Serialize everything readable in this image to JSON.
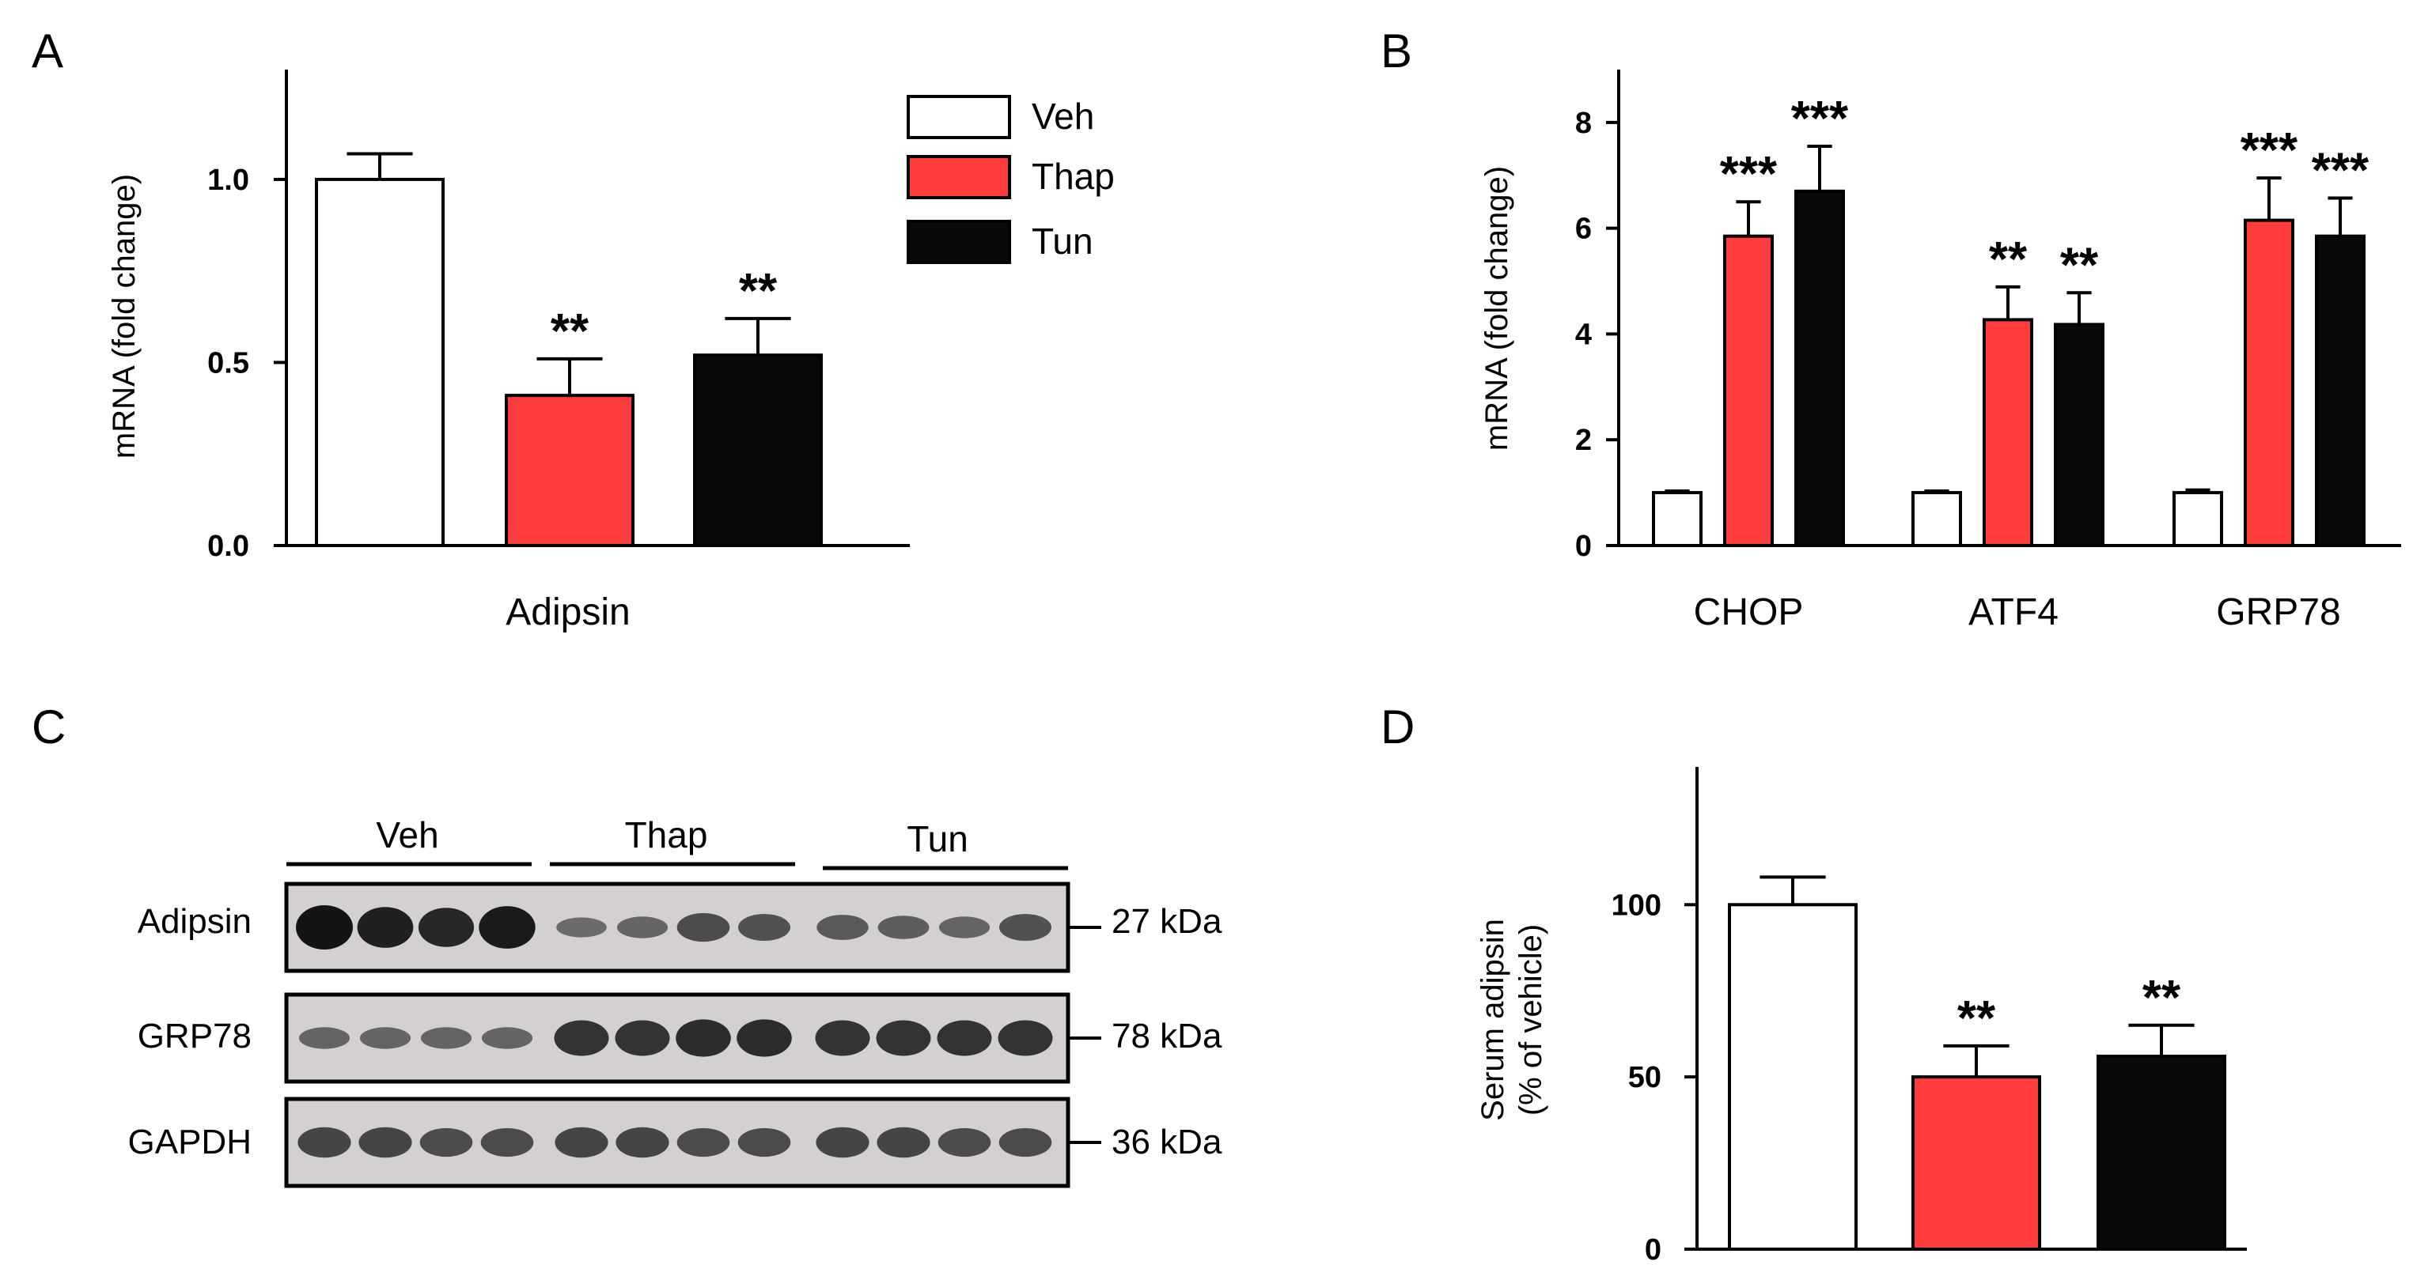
{
  "colors": {
    "veh": "#ffffff",
    "thap": "#ff3b3b",
    "tun": "#0a0a0a",
    "axis": "#000000",
    "blot_bg": "#d4d0d2",
    "band": "#141414"
  },
  "legend": {
    "items": [
      "Veh",
      "Thap",
      "Tun"
    ]
  },
  "chart_data": [
    {
      "panel": "A",
      "type": "bar",
      "categories": [
        "Adipsin"
      ],
      "series": [
        {
          "name": "Veh",
          "values": [
            1.0
          ],
          "errors": [
            0.07
          ],
          "sig": [
            ""
          ]
        },
        {
          "name": "Thap",
          "values": [
            0.41
          ],
          "errors": [
            0.1
          ],
          "sig": [
            "**"
          ]
        },
        {
          "name": "Tun",
          "values": [
            0.52
          ],
          "errors": [
            0.1
          ],
          "sig": [
            "**"
          ]
        }
      ],
      "ylabel": "mRNA (fold change)",
      "yticks": [
        "0.0",
        "0.5",
        "1.0"
      ],
      "ytick_values": [
        0,
        0.5,
        1.0
      ],
      "ylim": [
        0,
        1.3
      ]
    },
    {
      "panel": "B",
      "type": "bar",
      "categories": [
        "CHOP",
        "ATF4",
        "GRP78"
      ],
      "series": [
        {
          "name": "Veh",
          "values": [
            1.0,
            1.0,
            1.0
          ],
          "errors": [
            0.03,
            0.03,
            0.05
          ],
          "sig": [
            "",
            "",
            ""
          ]
        },
        {
          "name": "Thap",
          "values": [
            5.85,
            4.27,
            6.15
          ],
          "errors": [
            0.65,
            0.62,
            0.8
          ],
          "sig": [
            "***",
            "**",
            "***"
          ]
        },
        {
          "name": "Tun",
          "values": [
            6.7,
            4.18,
            5.85
          ],
          "errors": [
            0.85,
            0.6,
            0.72
          ],
          "sig": [
            "***",
            "**",
            "***"
          ]
        }
      ],
      "ylabel": "mRNA (fold change)",
      "yticks": [
        "0",
        "2",
        "4",
        "6",
        "8"
      ],
      "ytick_values": [
        0,
        2,
        4,
        6,
        8
      ],
      "ylim": [
        0,
        9
      ]
    },
    {
      "panel": "D",
      "type": "bar",
      "categories": [
        ""
      ],
      "series": [
        {
          "name": "Veh",
          "values": [
            100
          ],
          "errors": [
            8
          ],
          "sig": [
            ""
          ]
        },
        {
          "name": "Thap",
          "values": [
            50
          ],
          "errors": [
            9
          ],
          "sig": [
            "**"
          ]
        },
        {
          "name": "Tun",
          "values": [
            56
          ],
          "errors": [
            9
          ],
          "sig": [
            "**"
          ]
        }
      ],
      "ylabel": "Serum adipsin",
      "ylabel2": "(% of vehicle)",
      "yticks": [
        "0",
        "50",
        "100"
      ],
      "ytick_values": [
        0,
        50,
        100
      ],
      "ylim": [
        0,
        140
      ]
    }
  ],
  "panels": {
    "a": "A",
    "b": "B",
    "c": "C",
    "d": "D"
  },
  "blot": {
    "groups": [
      "Veh",
      "Thap",
      "Tun"
    ],
    "rows": [
      {
        "label": "Adipsin",
        "kda": "27 kDa",
        "intensity": [
          1.0,
          0.9,
          0.85,
          0.95,
          0.3,
          0.35,
          0.55,
          0.5,
          0.45,
          0.4,
          0.35,
          0.5
        ]
      },
      {
        "label": "GRP78",
        "kda": "78 kDa",
        "intensity": [
          0.35,
          0.35,
          0.35,
          0.35,
          0.75,
          0.75,
          0.8,
          0.8,
          0.75,
          0.75,
          0.75,
          0.75
        ]
      },
      {
        "label": "GAPDH",
        "kda": "36 kDa",
        "intensity": [
          0.6,
          0.6,
          0.55,
          0.55,
          0.6,
          0.6,
          0.55,
          0.55,
          0.6,
          0.6,
          0.55,
          0.55
        ]
      }
    ]
  }
}
